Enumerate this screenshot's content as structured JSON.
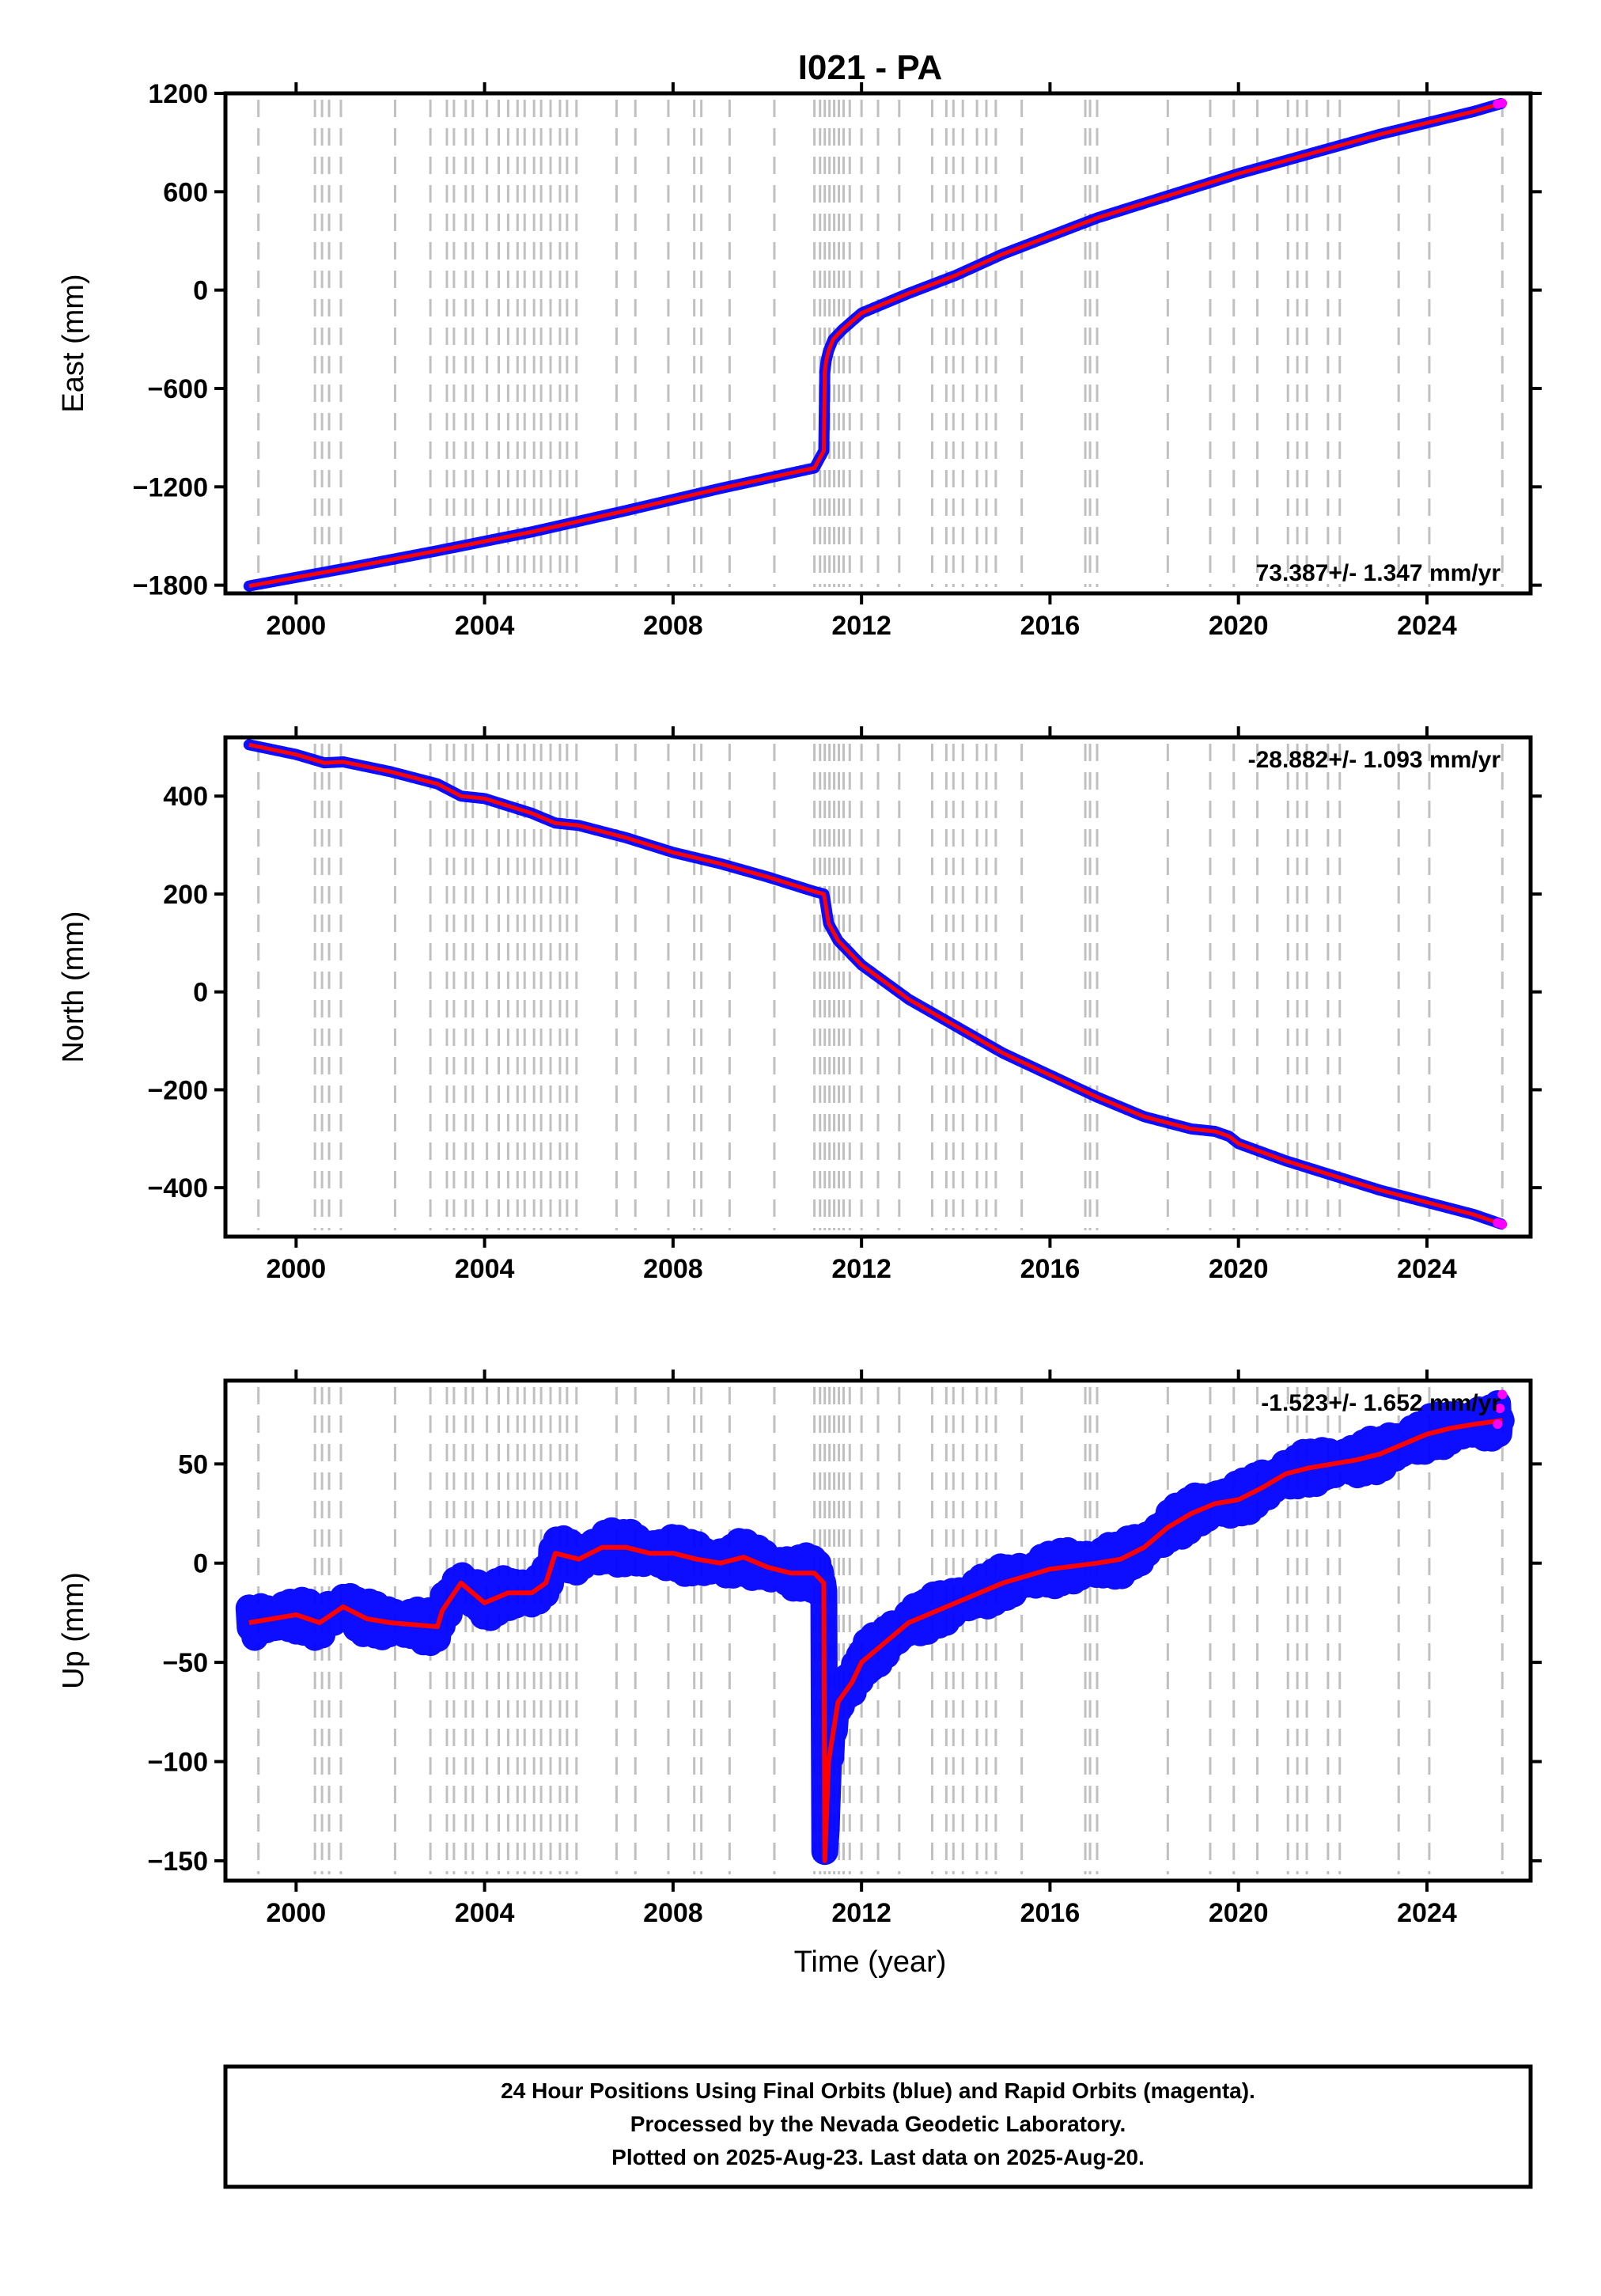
{
  "chart_data": {
    "type": "scatter",
    "title": "I021 - PA",
    "xlabel": "Time (year)",
    "x_tick_labels": [
      "2000",
      "2004",
      "2008",
      "2012",
      "2016",
      "2020",
      "2024"
    ],
    "xlim": [
      1998.5,
      2026.2
    ],
    "colors": {
      "final": "#0000ff",
      "rapid": "#ff00ff",
      "model": "#ff0000",
      "steps": "#c0c0c0"
    },
    "step_epochs": [
      1999.2,
      2000.4,
      2000.55,
      2000.7,
      2000.95,
      2002.1,
      2002.85,
      2003.2,
      2003.35,
      2003.6,
      2003.75,
      2004.05,
      2004.3,
      2004.5,
      2004.7,
      2004.85,
      2005.05,
      2005.2,
      2005.4,
      2005.6,
      2005.75,
      2005.95,
      2006.8,
      2007.2,
      2007.9,
      2008.45,
      2008.6,
      2009.2,
      2010.15,
      2011.0,
      2011.12,
      2011.22,
      2011.32,
      2011.42,
      2011.52,
      2011.62,
      2011.75,
      2012.0,
      2012.35,
      2012.8,
      2013.5,
      2013.8,
      2013.95,
      2014.15,
      2014.45,
      2014.65,
      2014.85,
      2015.4,
      2016.75,
      2016.85,
      2017.0,
      2018.5,
      2019.4,
      2019.9,
      2020.4,
      2021.05,
      2021.25,
      2021.45,
      2021.9,
      2022.15,
      2023.4,
      2024.05,
      2025.6
    ],
    "panels": [
      {
        "ylabel": "East (mm)",
        "ylim": [
          -1850,
          1200
        ],
        "y_ticks": [
          1200,
          600,
          0,
          -600,
          -1200,
          -1800
        ],
        "y_tick_labels": [
          "1200",
          "600",
          "0",
          "−600",
          "−1200",
          "−1800"
        ],
        "rate_label": "73.387+/- 1.347 mm/yr",
        "rate_position": "bottom-right",
        "x": [
          1999.0,
          2001.0,
          2003.0,
          2005.0,
          2007.0,
          2009.0,
          2011.0,
          2011.2,
          2011.22,
          2011.25,
          2011.3,
          2011.4,
          2011.6,
          2011.8,
          2012.0,
          2012.5,
          2013.0,
          2014.0,
          2015.0,
          2016.0,
          2017.0,
          2018.0,
          2019.0,
          2020.0,
          2021.0,
          2022.0,
          2023.0,
          2024.0,
          2025.0,
          2025.6
        ],
        "y": [
          -1805,
          -1700,
          -1590,
          -1475,
          -1345,
          -1210,
          -1085,
          -980,
          -500,
          -430,
          -370,
          -300,
          -240,
          -190,
          -140,
          -80,
          -20,
          90,
          220,
          330,
          440,
          530,
          620,
          710,
          790,
          870,
          950,
          1020,
          1090,
          1140
        ],
        "rapid_x": [
          2025.5,
          2025.6
        ],
        "rapid_y": [
          1135,
          1140
        ]
      },
      {
        "ylabel": "North (mm)",
        "ylim": [
          -500,
          520
        ],
        "y_ticks": [
          400,
          200,
          0,
          -200,
          -400
        ],
        "y_tick_labels": [
          "400",
          "200",
          "0",
          "−200",
          "−400"
        ],
        "rate_label": "-28.882+/- 1.093 mm/yr",
        "rate_position": "top-right",
        "x": [
          1999.0,
          2000.0,
          2000.6,
          2001.0,
          2002.0,
          2003.0,
          2003.5,
          2004.0,
          2005.0,
          2005.5,
          2006.0,
          2007.0,
          2008.0,
          2009.0,
          2010.0,
          2011.0,
          2011.2,
          2011.22,
          2011.3,
          2011.5,
          2011.8,
          2012.0,
          2012.5,
          2013.0,
          2014.0,
          2015.0,
          2016.0,
          2017.0,
          2018.0,
          2019.0,
          2019.5,
          2019.8,
          2020.0,
          2021.0,
          2022.0,
          2023.0,
          2024.0,
          2025.0,
          2025.6
        ],
        "y": [
          505,
          485,
          468,
          470,
          450,
          425,
          400,
          395,
          365,
          345,
          340,
          315,
          285,
          262,
          235,
          205,
          200,
          190,
          140,
          105,
          75,
          55,
          20,
          -15,
          -70,
          -125,
          -170,
          -215,
          -255,
          -280,
          -285,
          -295,
          -310,
          -345,
          -375,
          -405,
          -430,
          -455,
          -475
        ],
        "rapid_x": [
          2025.5,
          2025.6
        ],
        "rapid_y": [
          -472,
          -475
        ]
      },
      {
        "ylabel": "Up (mm)",
        "ylim": [
          -160,
          92
        ],
        "y_ticks": [
          50,
          0,
          -50,
          -100,
          -150
        ],
        "y_tick_labels": [
          "50",
          "0",
          "−50",
          "−100",
          "−150"
        ],
        "rate_label": "-1.523+/- 1.652 mm/yr",
        "rate_position": "top-right",
        "x": [
          1999.0,
          1999.5,
          2000.0,
          2000.5,
          2001.0,
          2001.5,
          2002.0,
          2002.5,
          2003.0,
          2003.1,
          2003.5,
          2004.0,
          2004.5,
          2005.0,
          2005.3,
          2005.5,
          2006.0,
          2006.5,
          2007.0,
          2007.5,
          2008.0,
          2008.5,
          2009.0,
          2009.5,
          2010.0,
          2010.5,
          2011.0,
          2011.2,
          2011.22,
          2011.3,
          2011.5,
          2011.8,
          2012.0,
          2012.5,
          2013.0,
          2014.0,
          2015.0,
          2016.0,
          2017.0,
          2017.5,
          2018.0,
          2018.5,
          2019.0,
          2019.5,
          2020.0,
          2020.5,
          2021.0,
          2021.5,
          2022.0,
          2022.5,
          2023.0,
          2023.5,
          2024.0,
          2024.5,
          2025.0,
          2025.6
        ],
        "y": [
          -30,
          -28,
          -26,
          -30,
          -22,
          -28,
          -30,
          -31,
          -32,
          -24,
          -10,
          -20,
          -15,
          -15,
          -10,
          5,
          2,
          8,
          8,
          5,
          5,
          2,
          0,
          3,
          -2,
          -5,
          -5,
          -10,
          -150,
          -100,
          -70,
          -60,
          -50,
          -40,
          -30,
          -20,
          -10,
          -3,
          0,
          2,
          8,
          18,
          25,
          30,
          32,
          38,
          45,
          48,
          50,
          52,
          55,
          60,
          65,
          68,
          70,
          72
        ],
        "rapid_x": [
          2025.5,
          2025.55,
          2025.6
        ],
        "rapid_y": [
          70,
          78,
          85
        ]
      }
    ]
  },
  "footer": {
    "line1": "24 Hour Positions Using Final Orbits (blue) and Rapid Orbits (magenta).",
    "line2": "Processed by the Nevada Geodetic Laboratory.",
    "line3": "Plotted on 2025-Aug-23. Last data on 2025-Aug-20."
  }
}
